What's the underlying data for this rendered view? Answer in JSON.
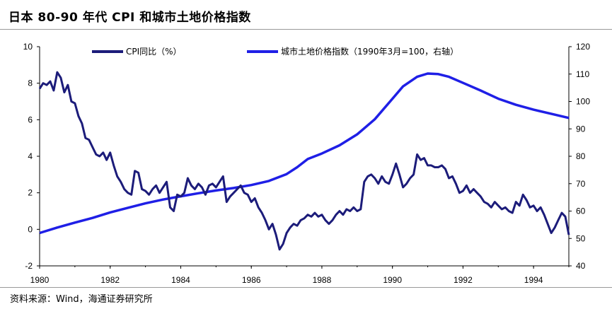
{
  "title": "日本 80-90 年代 CPI 和城市土地价格指数",
  "source": "资料来源：Wind，海通证券研究所",
  "colors": {
    "cpi": "#1c1c7a",
    "land": "#1f1fe6",
    "axis": "#000000"
  },
  "chart_data": {
    "type": "line",
    "x_ticks": [
      "1980",
      "1982",
      "1984",
      "1986",
      "1988",
      "1990",
      "1992",
      "1994"
    ],
    "y_left": {
      "ticks": [
        "10",
        "8",
        "6",
        "4",
        "2",
        "0",
        "-2"
      ],
      "range": [
        -2,
        10
      ]
    },
    "y_right": {
      "ticks": [
        "120",
        "110",
        "100",
        "90",
        "80",
        "70",
        "60",
        "50",
        "40"
      ],
      "range": [
        40,
        120
      ]
    },
    "x_range": [
      1980,
      1995
    ],
    "series": [
      {
        "name": "CPI同比（%）",
        "axis": "left",
        "points": [
          [
            1980.0,
            7.7
          ],
          [
            1980.1,
            8.0
          ],
          [
            1980.2,
            7.9
          ],
          [
            1980.3,
            8.1
          ],
          [
            1980.4,
            7.6
          ],
          [
            1980.5,
            8.6
          ],
          [
            1980.6,
            8.3
          ],
          [
            1980.7,
            7.5
          ],
          [
            1980.8,
            7.9
          ],
          [
            1980.9,
            7.0
          ],
          [
            1981.0,
            6.9
          ],
          [
            1981.1,
            6.2
          ],
          [
            1981.2,
            5.8
          ],
          [
            1981.3,
            5.0
          ],
          [
            1981.4,
            4.9
          ],
          [
            1981.5,
            4.5
          ],
          [
            1981.6,
            4.1
          ],
          [
            1981.7,
            4.0
          ],
          [
            1981.8,
            4.2
          ],
          [
            1981.9,
            3.8
          ],
          [
            1982.0,
            4.2
          ],
          [
            1982.1,
            3.5
          ],
          [
            1982.2,
            2.9
          ],
          [
            1982.3,
            2.6
          ],
          [
            1982.4,
            2.2
          ],
          [
            1982.5,
            2.0
          ],
          [
            1982.6,
            1.9
          ],
          [
            1982.7,
            3.2
          ],
          [
            1982.8,
            3.1
          ],
          [
            1982.9,
            2.2
          ],
          [
            1983.0,
            2.1
          ],
          [
            1983.1,
            1.9
          ],
          [
            1983.2,
            2.2
          ],
          [
            1983.3,
            2.4
          ],
          [
            1983.4,
            2.0
          ],
          [
            1983.5,
            2.3
          ],
          [
            1983.6,
            2.6
          ],
          [
            1983.7,
            1.2
          ],
          [
            1983.8,
            1.0
          ],
          [
            1983.9,
            1.9
          ],
          [
            1984.0,
            1.8
          ],
          [
            1984.1,
            2.0
          ],
          [
            1984.2,
            2.8
          ],
          [
            1984.3,
            2.4
          ],
          [
            1984.4,
            2.2
          ],
          [
            1984.5,
            2.5
          ],
          [
            1984.6,
            2.3
          ],
          [
            1984.7,
            1.9
          ],
          [
            1984.8,
            2.4
          ],
          [
            1984.9,
            2.5
          ],
          [
            1985.0,
            2.3
          ],
          [
            1985.1,
            2.6
          ],
          [
            1985.2,
            2.9
          ],
          [
            1985.3,
            1.5
          ],
          [
            1985.4,
            1.8
          ],
          [
            1985.5,
            2.0
          ],
          [
            1985.6,
            2.2
          ],
          [
            1985.7,
            2.4
          ],
          [
            1985.8,
            2.0
          ],
          [
            1985.9,
            1.9
          ],
          [
            1986.0,
            1.5
          ],
          [
            1986.1,
            1.7
          ],
          [
            1986.2,
            1.2
          ],
          [
            1986.3,
            0.9
          ],
          [
            1986.4,
            0.5
          ],
          [
            1986.5,
            0.0
          ],
          [
            1986.6,
            0.3
          ],
          [
            1986.7,
            -0.3
          ],
          [
            1986.8,
            -1.1
          ],
          [
            1986.9,
            -0.8
          ],
          [
            1987.0,
            -0.2
          ],
          [
            1987.1,
            0.1
          ],
          [
            1987.2,
            0.3
          ],
          [
            1987.3,
            0.2
          ],
          [
            1987.4,
            0.5
          ],
          [
            1987.5,
            0.6
          ],
          [
            1987.6,
            0.8
          ],
          [
            1987.7,
            0.7
          ],
          [
            1987.8,
            0.9
          ],
          [
            1987.9,
            0.7
          ],
          [
            1988.0,
            0.8
          ],
          [
            1988.1,
            0.5
          ],
          [
            1988.2,
            0.3
          ],
          [
            1988.3,
            0.5
          ],
          [
            1988.4,
            0.8
          ],
          [
            1988.5,
            1.0
          ],
          [
            1988.6,
            0.8
          ],
          [
            1988.7,
            1.1
          ],
          [
            1988.8,
            1.0
          ],
          [
            1988.9,
            1.2
          ],
          [
            1989.0,
            1.0
          ],
          [
            1989.1,
            1.1
          ],
          [
            1989.2,
            2.6
          ],
          [
            1989.3,
            2.9
          ],
          [
            1989.4,
            3.0
          ],
          [
            1989.5,
            2.8
          ],
          [
            1989.6,
            2.5
          ],
          [
            1989.7,
            2.9
          ],
          [
            1989.8,
            2.6
          ],
          [
            1989.9,
            2.5
          ],
          [
            1990.0,
            3.0
          ],
          [
            1990.1,
            3.6
          ],
          [
            1990.2,
            3.0
          ],
          [
            1990.3,
            2.3
          ],
          [
            1990.4,
            2.5
          ],
          [
            1990.5,
            2.8
          ],
          [
            1990.6,
            3.0
          ],
          [
            1990.7,
            4.1
          ],
          [
            1990.8,
            3.8
          ],
          [
            1990.9,
            3.9
          ],
          [
            1991.0,
            3.5
          ],
          [
            1991.1,
            3.5
          ],
          [
            1991.2,
            3.4
          ],
          [
            1991.3,
            3.4
          ],
          [
            1991.4,
            3.5
          ],
          [
            1991.5,
            3.3
          ],
          [
            1991.6,
            2.8
          ],
          [
            1991.7,
            2.9
          ],
          [
            1991.8,
            2.5
          ],
          [
            1991.9,
            2.0
          ],
          [
            1992.0,
            2.1
          ],
          [
            1992.1,
            2.4
          ],
          [
            1992.2,
            2.0
          ],
          [
            1992.3,
            2.2
          ],
          [
            1992.4,
            2.0
          ],
          [
            1992.5,
            1.8
          ],
          [
            1992.6,
            1.5
          ],
          [
            1992.7,
            1.4
          ],
          [
            1992.8,
            1.2
          ],
          [
            1992.9,
            1.5
          ],
          [
            1993.0,
            1.3
          ],
          [
            1993.1,
            1.1
          ],
          [
            1993.2,
            1.2
          ],
          [
            1993.3,
            1.0
          ],
          [
            1993.4,
            0.9
          ],
          [
            1993.5,
            1.5
          ],
          [
            1993.6,
            1.3
          ],
          [
            1993.7,
            1.9
          ],
          [
            1993.8,
            1.6
          ],
          [
            1993.9,
            1.2
          ],
          [
            1994.0,
            1.3
          ],
          [
            1994.1,
            1.0
          ],
          [
            1994.2,
            1.2
          ],
          [
            1994.3,
            0.8
          ],
          [
            1994.4,
            0.3
          ],
          [
            1994.5,
            -0.2
          ],
          [
            1994.6,
            0.1
          ],
          [
            1994.7,
            0.5
          ],
          [
            1994.8,
            0.9
          ],
          [
            1994.9,
            0.7
          ],
          [
            1995.0,
            -0.3
          ]
        ]
      },
      {
        "name": "城市土地价格指数（1990年3月=100，右轴）",
        "axis": "right",
        "points": [
          [
            1980.0,
            52.0
          ],
          [
            1980.5,
            54.0
          ],
          [
            1981.0,
            55.8
          ],
          [
            1981.5,
            57.5
          ],
          [
            1982.0,
            59.5
          ],
          [
            1982.5,
            61.2
          ],
          [
            1983.0,
            62.8
          ],
          [
            1983.5,
            64.2
          ],
          [
            1984.0,
            65.4
          ],
          [
            1984.5,
            66.5
          ],
          [
            1985.0,
            67.5
          ],
          [
            1985.5,
            68.4
          ],
          [
            1986.0,
            69.5
          ],
          [
            1986.5,
            71.0
          ],
          [
            1987.0,
            73.5
          ],
          [
            1987.3,
            76.0
          ],
          [
            1987.6,
            79.0
          ],
          [
            1988.0,
            81.0
          ],
          [
            1988.5,
            84.0
          ],
          [
            1989.0,
            88.0
          ],
          [
            1989.5,
            93.5
          ],
          [
            1990.0,
            101.0
          ],
          [
            1990.3,
            105.5
          ],
          [
            1990.7,
            109.0
          ],
          [
            1991.0,
            110.2
          ],
          [
            1991.3,
            110.0
          ],
          [
            1991.6,
            109.0
          ],
          [
            1992.0,
            106.8
          ],
          [
            1992.5,
            104.0
          ],
          [
            1993.0,
            101.0
          ],
          [
            1993.5,
            98.8
          ],
          [
            1994.0,
            97.0
          ],
          [
            1994.5,
            95.5
          ],
          [
            1995.0,
            94.0
          ]
        ]
      }
    ]
  }
}
